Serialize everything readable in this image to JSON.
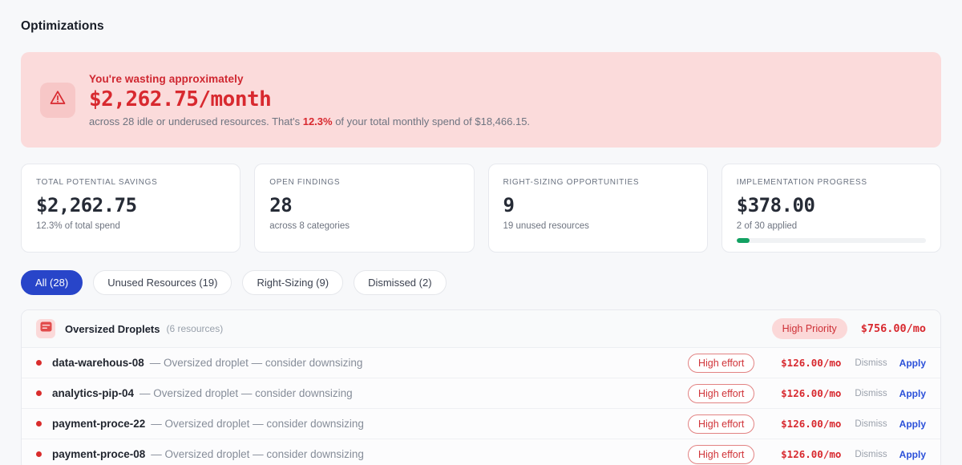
{
  "page": {
    "title": "Optimizations"
  },
  "colors": {
    "accent_blue": "#2845c9",
    "danger_red": "#d8292f",
    "banner_pink": "#fbdbdb",
    "progress_green": "#12a162"
  },
  "banner": {
    "icon": "warning-triangle-icon",
    "heading": "You're wasting approximately",
    "amount": "$2,262.75/month",
    "detail_prefix": "across 28 idle or underused resources. That's ",
    "detail_percent": "12.3%",
    "detail_suffix": " of your total monthly spend of $18,466.15."
  },
  "stats": [
    {
      "label": "TOTAL POTENTIAL SAVINGS",
      "value": "$2,262.75",
      "sub": "12.3% of total spend"
    },
    {
      "label": "OPEN FINDINGS",
      "value": "28",
      "sub": "across 8 categories"
    },
    {
      "label": "RIGHT-SIZING OPPORTUNITIES",
      "value": "9",
      "sub": "19 unused resources"
    },
    {
      "label": "IMPLEMENTATION PROGRESS",
      "value": "$378.00",
      "sub": "2 of 30 applied",
      "progress_percent": 7
    }
  ],
  "filters": [
    {
      "label": "All (28)",
      "active": true
    },
    {
      "label": "Unused Resources (19)",
      "active": false
    },
    {
      "label": "Right-Sizing (9)",
      "active": false
    },
    {
      "label": "Dismissed (2)",
      "active": false
    }
  ],
  "group": {
    "icon": "droplet-server-icon",
    "title": "Oversized Droplets",
    "count": "(6 resources)",
    "priority_badge": "High Priority",
    "total_cost": "$756.00/mo",
    "rows": [
      {
        "name": "data-warehous-08",
        "desc": "— Oversized droplet — consider downsizing",
        "effort": "High effort",
        "cost": "$126.00/mo",
        "dismiss_label": "Dismiss",
        "apply_label": "Apply"
      },
      {
        "name": "analytics-pip-04",
        "desc": "— Oversized droplet — consider downsizing",
        "effort": "High effort",
        "cost": "$126.00/mo",
        "dismiss_label": "Dismiss",
        "apply_label": "Apply"
      },
      {
        "name": "payment-proce-22",
        "desc": "— Oversized droplet — consider downsizing",
        "effort": "High effort",
        "cost": "$126.00/mo",
        "dismiss_label": "Dismiss",
        "apply_label": "Apply"
      },
      {
        "name": "payment-proce-08",
        "desc": "— Oversized droplet — consider downsizing",
        "effort": "High effort",
        "cost": "$126.00/mo",
        "dismiss_label": "Dismiss",
        "apply_label": "Apply"
      }
    ]
  }
}
